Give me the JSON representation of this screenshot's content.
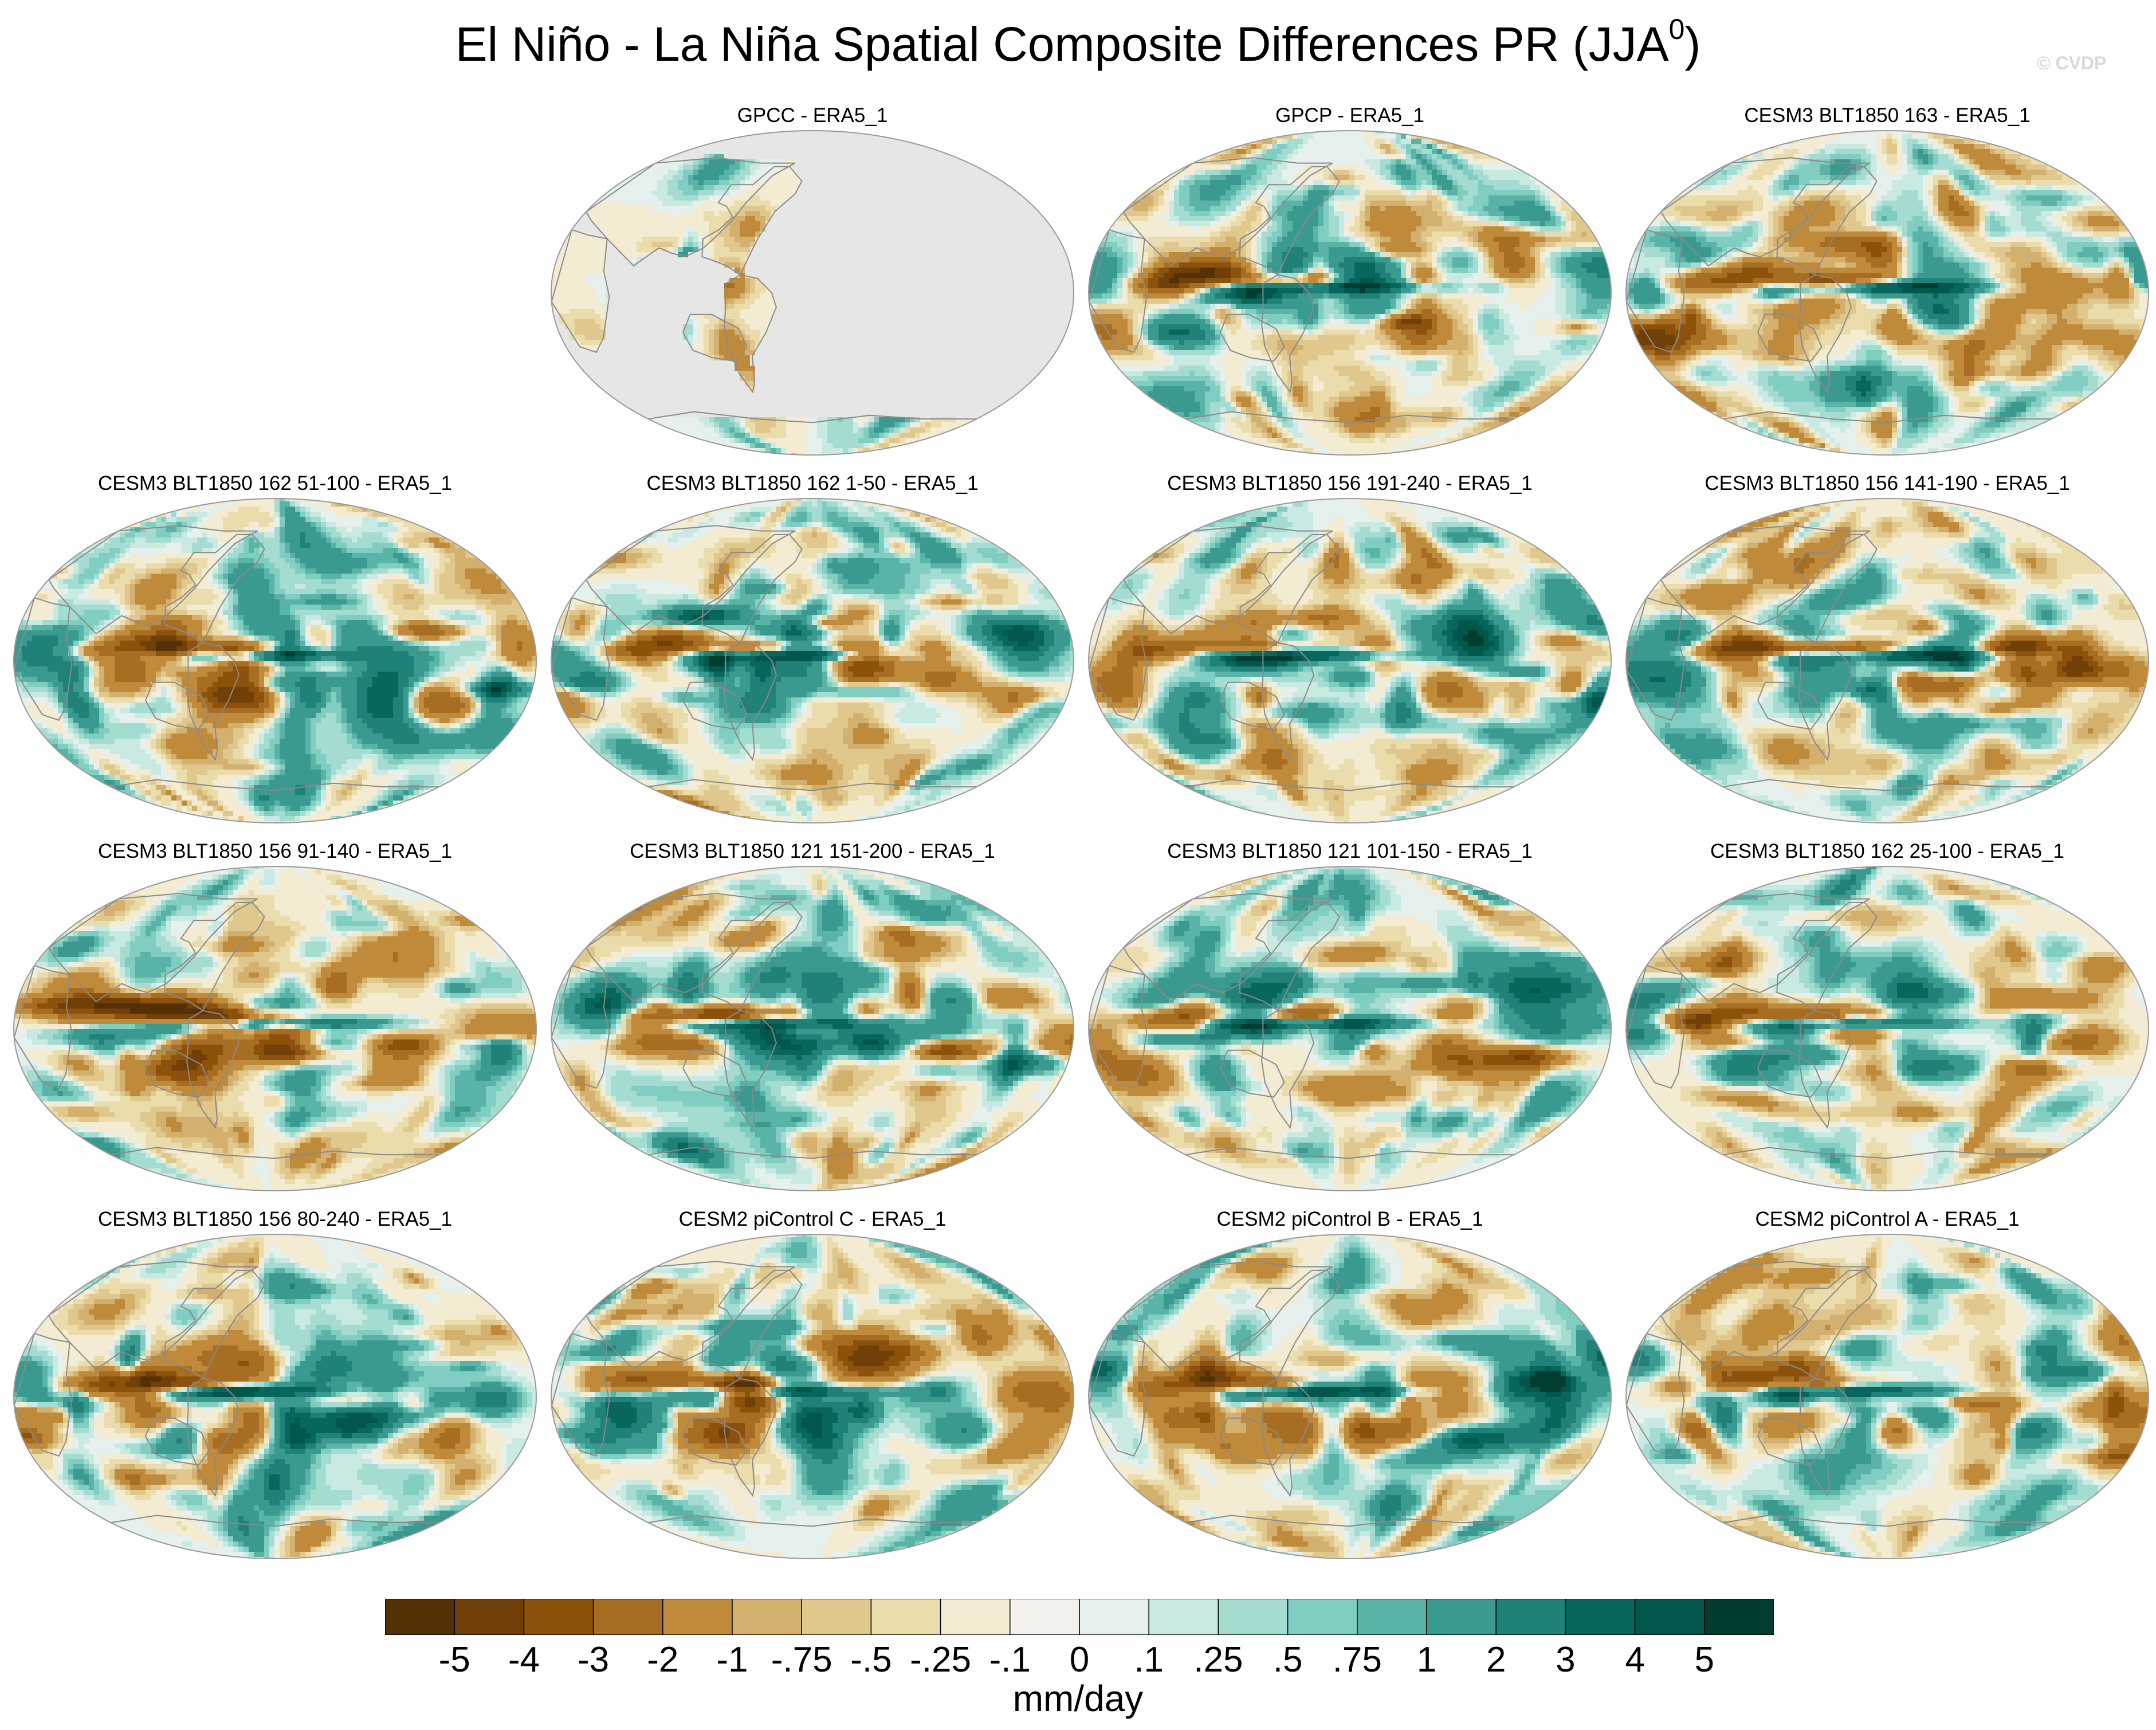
{
  "figure": {
    "title": "El Niño - La Niña Spatial Composite Differences PR (JJA",
    "title_superscript": "0",
    "title_close": ")",
    "watermark": "© CVDP",
    "units": "mm/day"
  },
  "panels": [
    {
      "id": 0,
      "title": "GPCC - ERA5_1",
      "row": 0,
      "col": 1,
      "land_only": true
    },
    {
      "id": 1,
      "title": "GPCP - ERA5_1",
      "row": 0,
      "col": 2,
      "land_only": false
    },
    {
      "id": 2,
      "title": "CESM3 BLT1850 163 - ERA5_1",
      "row": 0,
      "col": 3,
      "land_only": false
    },
    {
      "id": 3,
      "title": "CESM3 BLT1850 162 51-100 - ERA5_1",
      "row": 1,
      "col": 0,
      "land_only": false
    },
    {
      "id": 4,
      "title": "CESM3 BLT1850 162 1-50 - ERA5_1",
      "row": 1,
      "col": 1,
      "land_only": false
    },
    {
      "id": 5,
      "title": "CESM3 BLT1850 156 191-240 - ERA5_1",
      "row": 1,
      "col": 2,
      "land_only": false
    },
    {
      "id": 6,
      "title": "CESM3 BLT1850 156 141-190 - ERA5_1",
      "row": 1,
      "col": 3,
      "land_only": false
    },
    {
      "id": 7,
      "title": "CESM3 BLT1850 156 91-140 - ERA5_1",
      "row": 2,
      "col": 0,
      "land_only": false
    },
    {
      "id": 8,
      "title": "CESM3 BLT1850 121 151-200 - ERA5_1",
      "row": 2,
      "col": 1,
      "land_only": false
    },
    {
      "id": 9,
      "title": "CESM3 BLT1850 121 101-150 - ERA5_1",
      "row": 2,
      "col": 2,
      "land_only": false
    },
    {
      "id": 10,
      "title": "CESM3 BLT1850 162 25-100 - ERA5_1",
      "row": 2,
      "col": 3,
      "land_only": false
    },
    {
      "id": 11,
      "title": "CESM3 BLT1850 156 80-240 - ERA5_1",
      "row": 3,
      "col": 0,
      "land_only": false
    },
    {
      "id": 12,
      "title": "CESM2 piControl C - ERA5_1",
      "row": 3,
      "col": 1,
      "land_only": false
    },
    {
      "id": 13,
      "title": "CESM2 piControl B - ERA5_1",
      "row": 3,
      "col": 2,
      "land_only": false
    },
    {
      "id": 14,
      "title": "CESM2 piControl A - ERA5_1",
      "row": 3,
      "col": 3,
      "land_only": false
    }
  ],
  "colorbar": {
    "labels": [
      "-5",
      "-4",
      "-3",
      "-2",
      "-1",
      "-.75",
      "-.5",
      "-.25",
      "-.1",
      "0",
      ".1",
      ".25",
      ".5",
      ".75",
      "1",
      "2",
      "3",
      "4",
      "5"
    ],
    "colors": [
      "#543005",
      "#714008",
      "#8c510a",
      "#a76d22",
      "#bf8b3b",
      "#d4b06e",
      "#e0c78c",
      "#ebdcac",
      "#f3ecd3",
      "#f3f1ec",
      "#e6f1ee",
      "#c9eae2",
      "#a5dcd1",
      "#80cdc1",
      "#5ab3a7",
      "#3b9a8f",
      "#1f8177",
      "#07675d",
      "#01574b",
      "#003c30"
    ]
  }
}
